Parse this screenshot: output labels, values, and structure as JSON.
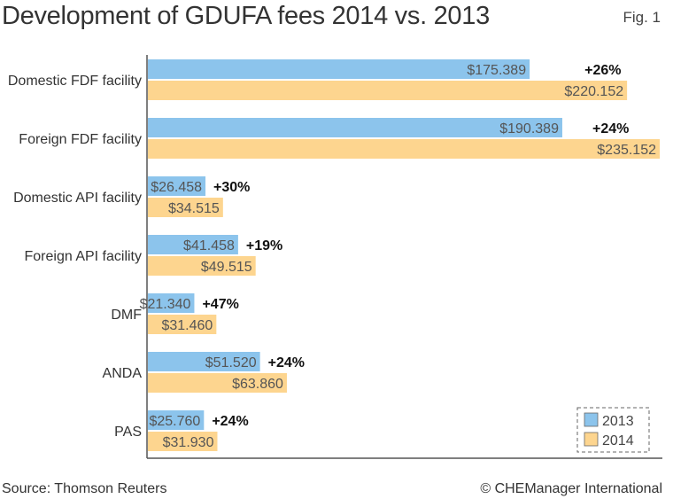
{
  "title": "Development of GDUFA fees 2014 vs. 2013",
  "fig_label": "Fig. 1",
  "source": "Source: Thomson Reuters",
  "copyright": "© CHEManager International",
  "chart_data": {
    "type": "bar",
    "orientation": "horizontal",
    "title": "Development of GDUFA fees 2014 vs. 2013",
    "categories": [
      "Domestic FDF facility",
      "Foreign FDF facility",
      "Domestic API facility",
      "Foreign API facility",
      "DMF",
      "ANDA",
      "PAS"
    ],
    "series": [
      {
        "name": "2013",
        "color": "#8cc4ec",
        "values": [
          175.389,
          190.389,
          26.458,
          41.458,
          21.34,
          51.52,
          25.76
        ],
        "labels": [
          "$175.389",
          "$190.389",
          "$26.458",
          "$41.458",
          "$21.340",
          "$51.520",
          "$25.760"
        ]
      },
      {
        "name": "2014",
        "color": "#fdd58f",
        "values": [
          220.152,
          235.152,
          34.515,
          49.515,
          31.46,
          63.86,
          31.93
        ],
        "labels": [
          "$220.152",
          "$235.152",
          "$34.515",
          "$49.515",
          "$31.460",
          "$63.860",
          "$31.930"
        ]
      }
    ],
    "changes": [
      "+26%",
      "+24%",
      "+30%",
      "+19%",
      "+47%",
      "+24%",
      "+24%"
    ],
    "legend": {
      "position": "bottom-right",
      "items": [
        "2013",
        "2014"
      ]
    },
    "grid": false
  }
}
